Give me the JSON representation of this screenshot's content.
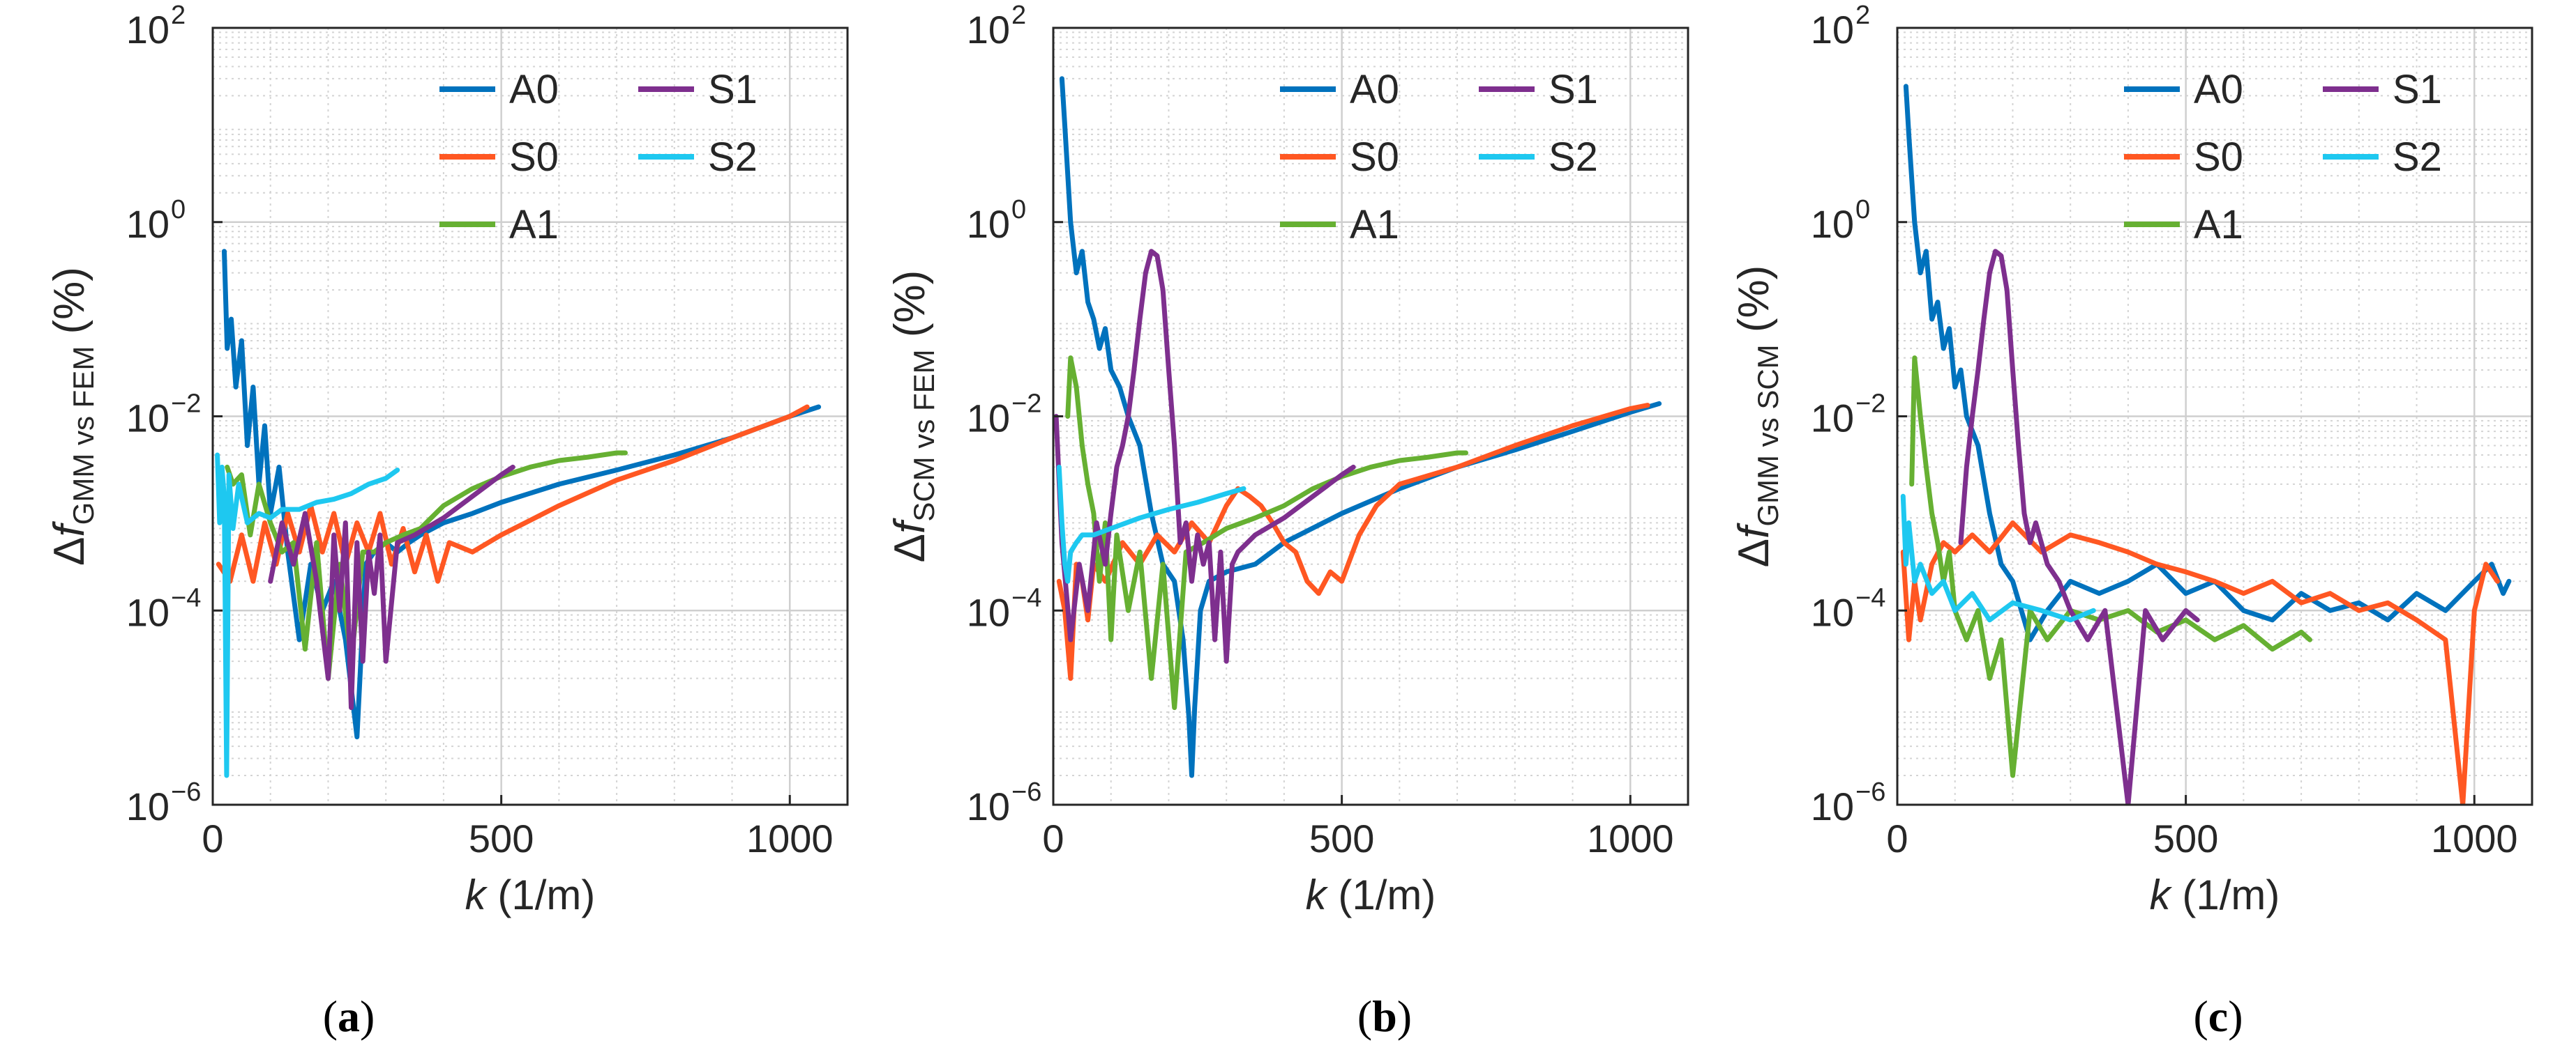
{
  "figure": {
    "series_colors": {
      "A0": "#0072BD",
      "S0": "#FF5722",
      "A1": "#66B032",
      "S1": "#7E2F8E",
      "S2": "#1EC8F0"
    }
  },
  "chart_data": [
    {
      "type": "line",
      "panel_label": "a",
      "xlabel_var": "k",
      "xlabel_unit": "(1/m)",
      "ylabel_prefix": "Δf",
      "ylabel_sub": "GMM vs FEM",
      "ylabel_unit": "(%)",
      "xlim": [
        0,
        1100
      ],
      "ylim": [
        1e-06,
        100
      ],
      "yscale": "log",
      "grid": true,
      "legend_placement": "top-right",
      "xticks": [
        "0",
        "500",
        "1000"
      ],
      "yticks_base": "10",
      "yticks_exp": [
        "2",
        "0",
        "-2",
        "-4",
        "-6"
      ],
      "series": [
        {
          "name": "A0",
          "x": [
            20,
            25,
            32,
            40,
            50,
            60,
            70,
            80,
            90,
            100,
            115,
            130,
            150,
            170,
            190,
            210,
            230,
            250,
            265,
            280,
            300,
            320,
            340,
            360,
            400,
            450,
            500,
            600,
            700,
            800,
            900,
            1000,
            1050
          ],
          "y": [
            0.5,
            0.05,
            0.1,
            0.02,
            0.06,
            0.005,
            0.02,
            0.002,
            0.008,
            0.001,
            0.003,
            0.0004,
            5e-05,
            0.0003,
            0.0001,
            0.0002,
            5e-05,
            5e-06,
            0.0003,
            0.0004,
            0.0005,
            0.0004,
            0.0005,
            0.0006,
            0.0008,
            0.001,
            0.0013,
            0.002,
            0.0028,
            0.004,
            0.006,
            0.01,
            0.0125
          ]
        },
        {
          "name": "S0",
          "x": [
            10,
            30,
            50,
            70,
            90,
            110,
            130,
            150,
            170,
            190,
            210,
            230,
            250,
            270,
            290,
            310,
            330,
            350,
            370,
            390,
            410,
            450,
            500,
            600,
            700,
            800,
            900,
            1000,
            1030
          ],
          "y": [
            0.0003,
            0.0002,
            0.0006,
            0.0002,
            0.0008,
            0.0003,
            0.001,
            0.0004,
            0.0012,
            0.0004,
            0.001,
            0.0003,
            0.0008,
            0.0004,
            0.001,
            0.0003,
            0.0007,
            0.00025,
            0.0006,
            0.0002,
            0.0005,
            0.0004,
            0.0006,
            0.0012,
            0.0022,
            0.0035,
            0.006,
            0.01,
            0.0125
          ]
        },
        {
          "name": "A1",
          "x": [
            25,
            35,
            50,
            65,
            80,
            100,
            120,
            140,
            160,
            180,
            200,
            220,
            240,
            260,
            280,
            300,
            330,
            360,
            400,
            450,
            500,
            550,
            600,
            650,
            700,
            715
          ],
          "y": [
            0.003,
            0.002,
            0.0025,
            0.0006,
            0.002,
            0.0008,
            0.0004,
            0.0005,
            4e-05,
            0.0005,
            2e-05,
            0.0003,
            3e-05,
            0.0004,
            0.0004,
            0.0005,
            0.0006,
            0.0007,
            0.0012,
            0.0018,
            0.0024,
            0.003,
            0.0035,
            0.0038,
            0.0042,
            0.0042
          ]
        },
        {
          "name": "S1",
          "x": [
            100,
            120,
            140,
            160,
            180,
            200,
            210,
            220,
            230,
            240,
            250,
            260,
            270,
            280,
            290,
            300,
            320,
            350,
            400,
            450,
            500,
            520
          ],
          "y": [
            0.0002,
            0.0008,
            0.0003,
            0.001,
            0.0002,
            2e-05,
            0.0006,
            0.0001,
            0.0008,
            1e-05,
            0.0005,
            3e-05,
            0.0004,
            0.00015,
            0.0006,
            3e-05,
            0.0005,
            0.0006,
            0.0009,
            0.0015,
            0.0025,
            0.003
          ]
        },
        {
          "name": "S2",
          "x": [
            8,
            12,
            16,
            20,
            24,
            28,
            35,
            45,
            60,
            80,
            100,
            120,
            150,
            180,
            210,
            240,
            270,
            300,
            320
          ],
          "y": [
            0.004,
            0.0008,
            0.003,
            0.0015,
            2e-06,
            0.0025,
            0.0007,
            0.002,
            0.0008,
            0.001,
            0.0009,
            0.0011,
            0.0011,
            0.0013,
            0.0014,
            0.0016,
            0.002,
            0.0023,
            0.0028
          ]
        }
      ]
    },
    {
      "type": "line",
      "panel_label": "b",
      "xlabel_var": "k",
      "xlabel_unit": "(1/m)",
      "ylabel_prefix": "Δf",
      "ylabel_sub": "SCM vs FEM",
      "ylabel_unit": "(%)",
      "xlim": [
        0,
        1100
      ],
      "ylim": [
        1e-06,
        100
      ],
      "yscale": "log",
      "grid": true,
      "legend_placement": "top-right",
      "xticks": [
        "0",
        "500",
        "1000"
      ],
      "yticks_base": "10",
      "yticks_exp": [
        "2",
        "0",
        "-2",
        "-4",
        "-6"
      ],
      "series": [
        {
          "name": "A0",
          "x": [
            15,
            20,
            30,
            40,
            50,
            60,
            70,
            80,
            90,
            100,
            115,
            130,
            150,
            170,
            190,
            210,
            225,
            235,
            240,
            245,
            255,
            270,
            300,
            350,
            400,
            500,
            600,
            700,
            800,
            900,
            1000,
            1050
          ],
          "y": [
            30,
            10,
            1,
            0.3,
            0.5,
            0.15,
            0.1,
            0.05,
            0.08,
            0.03,
            0.02,
            0.01,
            0.005,
            0.001,
            0.0003,
            0.0002,
            5e-05,
            8e-06,
            2e-06,
            1e-05,
            0.0001,
            0.0002,
            0.00025,
            0.0003,
            0.0005,
            0.001,
            0.0018,
            0.003,
            0.0045,
            0.007,
            0.011,
            0.0135
          ]
        },
        {
          "name": "S0",
          "x": [
            10,
            20,
            30,
            40,
            50,
            60,
            70,
            90,
            120,
            150,
            180,
            210,
            240,
            270,
            300,
            320,
            340,
            360,
            380,
            400,
            420,
            440,
            460,
            480,
            500,
            530,
            560,
            600,
            700,
            800,
            900,
            1000,
            1030
          ],
          "y": [
            0.0002,
            0.0001,
            2e-05,
            0.0003,
            0.0002,
            8e-05,
            0.0003,
            0.0002,
            0.0005,
            0.0003,
            0.0006,
            0.0004,
            0.0008,
            0.0005,
            0.0012,
            0.0018,
            0.0015,
            0.0012,
            0.0008,
            0.0005,
            0.0004,
            0.0002,
            0.00015,
            0.00025,
            0.0002,
            0.0006,
            0.0012,
            0.002,
            0.003,
            0.005,
            0.008,
            0.012,
            0.013
          ]
        },
        {
          "name": "A1",
          "x": [
            25,
            30,
            40,
            50,
            60,
            70,
            80,
            90,
            100,
            110,
            130,
            150,
            170,
            190,
            210,
            230,
            260,
            300,
            350,
            400,
            450,
            500,
            550,
            600,
            650,
            700,
            715
          ],
          "y": [
            0.01,
            0.04,
            0.02,
            0.005,
            0.002,
            0.001,
            0.0002,
            0.0008,
            5e-05,
            0.0006,
            0.0001,
            0.0004,
            2e-05,
            0.0003,
            1e-05,
            0.0004,
            0.0005,
            0.0007,
            0.0009,
            0.0012,
            0.0018,
            0.0024,
            0.003,
            0.0035,
            0.0038,
            0.0042,
            0.0042
          ]
        },
        {
          "name": "S1",
          "x": [
            5,
            15,
            30,
            45,
            60,
            75,
            90,
            100,
            110,
            120,
            130,
            140,
            150,
            160,
            170,
            180,
            190,
            200,
            210,
            220,
            230,
            240,
            250,
            260,
            270,
            280,
            290,
            300,
            310,
            320,
            350,
            400,
            450,
            500,
            520
          ],
          "y": [
            0.01,
            0.0005,
            5e-05,
            0.0003,
            0.0001,
            0.0008,
            0.0003,
            0.001,
            0.003,
            0.005,
            0.01,
            0.03,
            0.1,
            0.3,
            0.5,
            0.45,
            0.2,
            0.03,
            0.005,
            0.0005,
            0.0008,
            0.0002,
            0.0006,
            0.0003,
            0.0005,
            5e-05,
            0.0004,
            3e-05,
            0.0003,
            0.0004,
            0.0006,
            0.0009,
            0.0015,
            0.0025,
            0.003
          ]
        },
        {
          "name": "S2",
          "x": [
            10,
            15,
            20,
            25,
            30,
            40,
            50,
            70,
            100,
            150,
            200,
            250,
            300,
            330
          ],
          "y": [
            0.003,
            0.0008,
            0.0003,
            0.0002,
            0.0004,
            0.0005,
            0.0006,
            0.0006,
            0.0007,
            0.0009,
            0.0011,
            0.0013,
            0.0016,
            0.0018
          ]
        }
      ]
    },
    {
      "type": "line",
      "panel_label": "c",
      "xlabel_var": "k",
      "xlabel_unit": "(1/m)",
      "ylabel_prefix": "Δf",
      "ylabel_sub": "GMM vs SCM",
      "ylabel_unit": "(%)",
      "xlim": [
        0,
        1100
      ],
      "ylim": [
        1e-06,
        100
      ],
      "yscale": "log",
      "grid": true,
      "legend_placement": "top-right",
      "xticks": [
        "0",
        "500",
        "1000"
      ],
      "yticks_base": "10",
      "yticks_exp": [
        "2",
        "0",
        "-2",
        "-4",
        "-6"
      ],
      "series": [
        {
          "name": "A0",
          "x": [
            15,
            20,
            30,
            40,
            50,
            60,
            70,
            80,
            90,
            100,
            110,
            120,
            140,
            160,
            180,
            200,
            230,
            260,
            300,
            350,
            400,
            450,
            500,
            550,
            600,
            650,
            700,
            750,
            800,
            850,
            900,
            950,
            1000,
            1030,
            1050,
            1060
          ],
          "y": [
            25,
            8,
            1,
            0.3,
            0.5,
            0.1,
            0.15,
            0.05,
            0.08,
            0.02,
            0.03,
            0.01,
            0.005,
            0.001,
            0.0003,
            0.0002,
            5e-05,
            0.0001,
            0.0002,
            0.00015,
            0.0002,
            0.0003,
            0.00015,
            0.0002,
            0.0001,
            8e-05,
            0.00015,
            0.0001,
            0.00012,
            8e-05,
            0.00015,
            0.0001,
            0.0002,
            0.0003,
            0.00015,
            0.0002
          ]
        },
        {
          "name": "S0",
          "x": [
            10,
            20,
            30,
            40,
            60,
            80,
            100,
            130,
            160,
            200,
            250,
            300,
            350,
            400,
            450,
            500,
            550,
            600,
            650,
            700,
            750,
            800,
            850,
            900,
            950,
            980,
            1000,
            1020,
            1040
          ],
          "y": [
            0.0004,
            5e-05,
            0.0002,
            8e-05,
            0.0003,
            0.0005,
            0.0004,
            0.0006,
            0.0004,
            0.0008,
            0.0004,
            0.0006,
            0.0005,
            0.0004,
            0.0003,
            0.00025,
            0.0002,
            0.00015,
            0.0002,
            0.00012,
            0.00015,
            0.0001,
            0.00012,
            8e-05,
            5e-05,
            1e-06,
            0.0001,
            0.0003,
            0.0002
          ]
        },
        {
          "name": "A1",
          "x": [
            25,
            30,
            40,
            50,
            60,
            70,
            80,
            90,
            100,
            120,
            140,
            160,
            180,
            200,
            230,
            260,
            300,
            350,
            400,
            450,
            500,
            550,
            600,
            650,
            700,
            715
          ],
          "y": [
            0.002,
            0.04,
            0.01,
            0.003,
            0.001,
            0.0005,
            0.0002,
            0.0004,
            0.0001,
            5e-05,
            0.0001,
            2e-05,
            5e-05,
            2e-06,
            0.0001,
            5e-05,
            0.0001,
            8e-05,
            0.0001,
            6e-05,
            8e-05,
            5e-05,
            7e-05,
            4e-05,
            6e-05,
            5e-05
          ]
        },
        {
          "name": "S1",
          "x": [
            110,
            120,
            130,
            140,
            150,
            160,
            170,
            180,
            190,
            200,
            210,
            220,
            230,
            240,
            260,
            280,
            300,
            330,
            360,
            400,
            430,
            460,
            500,
            520
          ],
          "y": [
            0.0005,
            0.003,
            0.01,
            0.03,
            0.1,
            0.3,
            0.5,
            0.45,
            0.2,
            0.03,
            0.005,
            0.001,
            0.0005,
            0.0008,
            0.0003,
            0.0002,
            0.0001,
            5e-05,
            0.0001,
            1e-06,
            0.0001,
            5e-05,
            0.0001,
            8e-05
          ]
        },
        {
          "name": "S2",
          "x": [
            10,
            15,
            20,
            30,
            40,
            60,
            80,
            100,
            130,
            160,
            200,
            250,
            300,
            340
          ],
          "y": [
            0.0015,
            0.0003,
            0.0008,
            0.0002,
            0.0003,
            0.00015,
            0.0002,
            0.0001,
            0.00015,
            8e-05,
            0.00012,
            0.0001,
            8e-05,
            0.0001
          ]
        }
      ]
    }
  ]
}
